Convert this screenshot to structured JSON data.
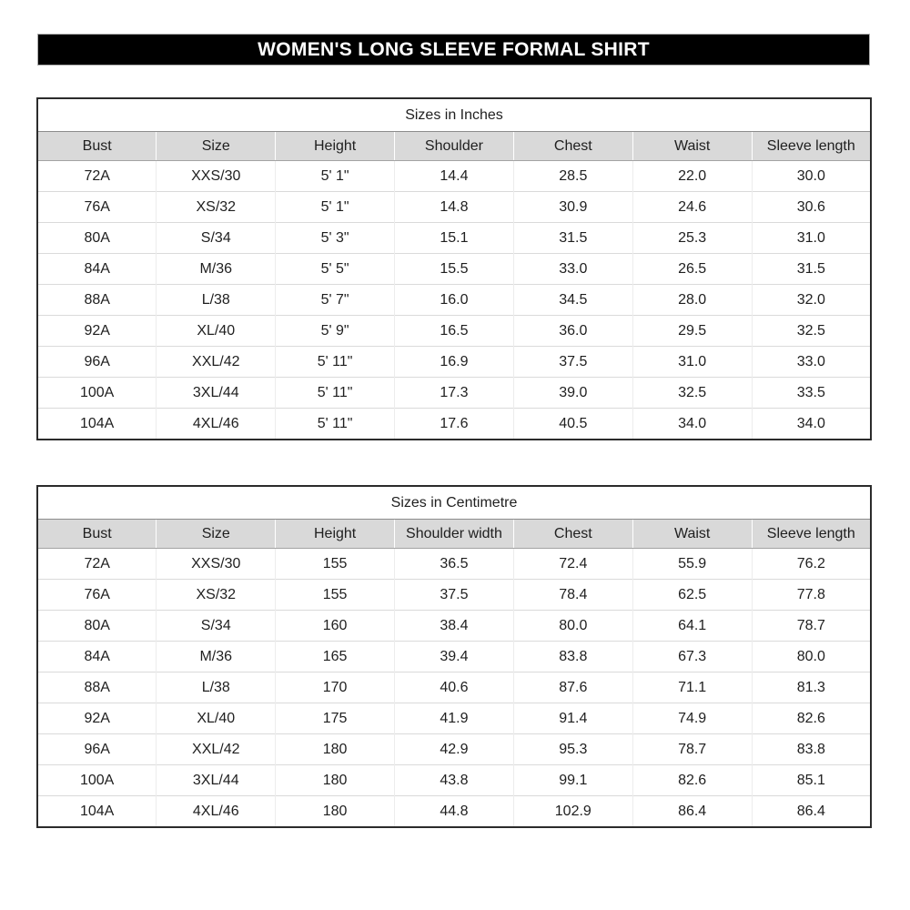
{
  "page": {
    "title": "WOMEN'S LONG SLEEVE FORMAL SHIRT"
  },
  "colors": {
    "title_bar_bg": "#000000",
    "title_bar_text": "#ffffff",
    "header_row_bg": "#d9d9d9",
    "table_border": "#2b2b2b",
    "row_divider": "#dadada"
  },
  "chart_data": [
    {
      "type": "table",
      "title": "Sizes in Inches",
      "columns": [
        "Bust",
        "Size",
        "Height",
        "Shoulder",
        "Chest",
        "Waist",
        "Sleeve length"
      ],
      "rows": [
        [
          "72A",
          "XXS/30",
          "5' 1\"",
          "14.4",
          "28.5",
          "22.0",
          "30.0"
        ],
        [
          "76A",
          "XS/32",
          "5' 1\"",
          "14.8",
          "30.9",
          "24.6",
          "30.6"
        ],
        [
          "80A",
          "S/34",
          "5' 3\"",
          "15.1",
          "31.5",
          "25.3",
          "31.0"
        ],
        [
          "84A",
          "M/36",
          "5' 5\"",
          "15.5",
          "33.0",
          "26.5",
          "31.5"
        ],
        [
          "88A",
          "L/38",
          "5' 7\"",
          "16.0",
          "34.5",
          "28.0",
          "32.0"
        ],
        [
          "92A",
          "XL/40",
          "5' 9\"",
          "16.5",
          "36.0",
          "29.5",
          "32.5"
        ],
        [
          "96A",
          "XXL/42",
          "5' 11\"",
          "16.9",
          "37.5",
          "31.0",
          "33.0"
        ],
        [
          "100A",
          "3XL/44",
          "5' 11\"",
          "17.3",
          "39.0",
          "32.5",
          "33.5"
        ],
        [
          "104A",
          "4XL/46",
          "5' 11\"",
          "17.6",
          "40.5",
          "34.0",
          "34.0"
        ]
      ]
    },
    {
      "type": "table",
      "title": "Sizes in Centimetre",
      "columns": [
        "Bust",
        "Size",
        "Height",
        "Shoulder width",
        "Chest",
        "Waist",
        "Sleeve length"
      ],
      "rows": [
        [
          "72A",
          "XXS/30",
          "155",
          "36.5",
          "72.4",
          "55.9",
          "76.2"
        ],
        [
          "76A",
          "XS/32",
          "155",
          "37.5",
          "78.4",
          "62.5",
          "77.8"
        ],
        [
          "80A",
          "S/34",
          "160",
          "38.4",
          "80.0",
          "64.1",
          "78.7"
        ],
        [
          "84A",
          "M/36",
          "165",
          "39.4",
          "83.8",
          "67.3",
          "80.0"
        ],
        [
          "88A",
          "L/38",
          "170",
          "40.6",
          "87.6",
          "71.1",
          "81.3"
        ],
        [
          "92A",
          "XL/40",
          "175",
          "41.9",
          "91.4",
          "74.9",
          "82.6"
        ],
        [
          "96A",
          "XXL/42",
          "180",
          "42.9",
          "95.3",
          "78.7",
          "83.8"
        ],
        [
          "100A",
          "3XL/44",
          "180",
          "43.8",
          "99.1",
          "82.6",
          "85.1"
        ],
        [
          "104A",
          "4XL/46",
          "180",
          "44.8",
          "102.9",
          "86.4",
          "86.4"
        ]
      ]
    }
  ]
}
